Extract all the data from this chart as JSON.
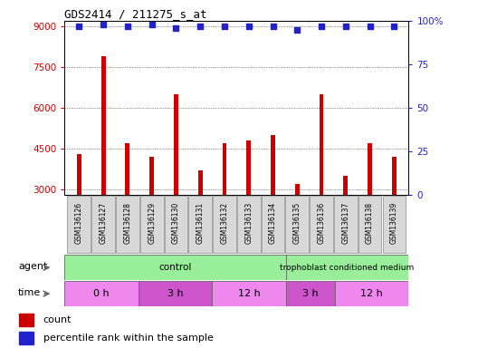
{
  "title": "GDS2414 / 211275_s_at",
  "samples": [
    "GSM136126",
    "GSM136127",
    "GSM136128",
    "GSM136129",
    "GSM136130",
    "GSM136131",
    "GSM136132",
    "GSM136133",
    "GSM136134",
    "GSM136135",
    "GSM136136",
    "GSM136137",
    "GSM136138",
    "GSM136139"
  ],
  "counts": [
    4300,
    7900,
    4700,
    4200,
    6500,
    3700,
    4700,
    4800,
    5000,
    3200,
    6500,
    3500,
    4700,
    4200
  ],
  "percentile_ranks": [
    97,
    98,
    97,
    98,
    96,
    97,
    97,
    97,
    97,
    95,
    97,
    97,
    97,
    97
  ],
  "ylim_left": [
    2800,
    9200
  ],
  "ylim_right": [
    0,
    100
  ],
  "yticks_left": [
    3000,
    4500,
    6000,
    7500,
    9000
  ],
  "yticks_right": [
    0,
    25,
    50,
    75,
    100
  ],
  "bar_color": "#cc0000",
  "dot_color": "#2222cc",
  "agent_groups": [
    {
      "label": "control",
      "start": 0,
      "end": 9
    },
    {
      "label": "trophoblast conditioned medium",
      "start": 9,
      "end": 14
    }
  ],
  "time_groups": [
    {
      "label": "0 h",
      "start": 0,
      "end": 3
    },
    {
      "label": "3 h",
      "start": 3,
      "end": 6
    },
    {
      "label": "12 h",
      "start": 6,
      "end": 9
    },
    {
      "label": "3 h",
      "start": 9,
      "end": 11
    },
    {
      "label": "12 h",
      "start": 11,
      "end": 14
    }
  ],
  "agent_label": "agent",
  "time_label": "time",
  "legend_count_label": "count",
  "legend_pct_label": "percentile rank within the sample",
  "grid_color": "#000000",
  "bg_color": "#ffffff",
  "tick_label_color_left": "#cc0000",
  "tick_label_color_right": "#2222cc",
  "agent_color": "#99ee99",
  "time_color_alt1": "#ee88ee",
  "time_color_alt2": "#cc55cc",
  "xtick_bg_color": "#cccccc",
  "bar_width": 0.18
}
